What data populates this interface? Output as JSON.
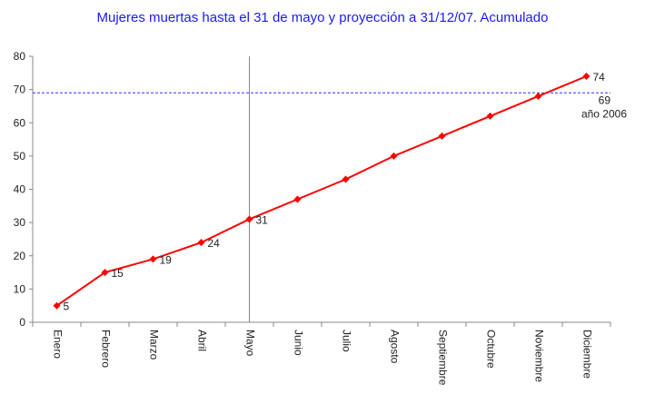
{
  "chart_data": {
    "type": "line",
    "title": "Mujeres muertas hasta el 31 de mayo y proyección a 31/12/07. Acumulado",
    "xlabel": "",
    "ylabel": "",
    "ylim": [
      0,
      80
    ],
    "yticks": [
      "0",
      "10",
      "20",
      "30",
      "40",
      "50",
      "60",
      "70",
      "80"
    ],
    "categories": [
      "Enero",
      "Febrero",
      "Marzo",
      "Abril",
      "Mayo",
      "Junio",
      "Julio",
      "Agosto",
      "Septiembre",
      "Octubre",
      "Noviembre",
      "Diciembre"
    ],
    "series": [
      {
        "values": [
          5,
          15,
          19,
          24,
          31,
          37,
          43,
          50,
          56,
          62,
          68,
          74
        ],
        "data_labels": [
          "5",
          "15",
          "19",
          "24",
          "31",
          null,
          null,
          null,
          null,
          null,
          null,
          "74"
        ],
        "color": "#ff0000"
      }
    ],
    "reference_line": {
      "value": 69,
      "label_value": "69",
      "label_text": "año 2006",
      "color": "#3333ff",
      "style": "dashed"
    },
    "marker_line": {
      "category": "Mayo",
      "color": "#888888"
    },
    "grid": false,
    "legend": "none"
  }
}
